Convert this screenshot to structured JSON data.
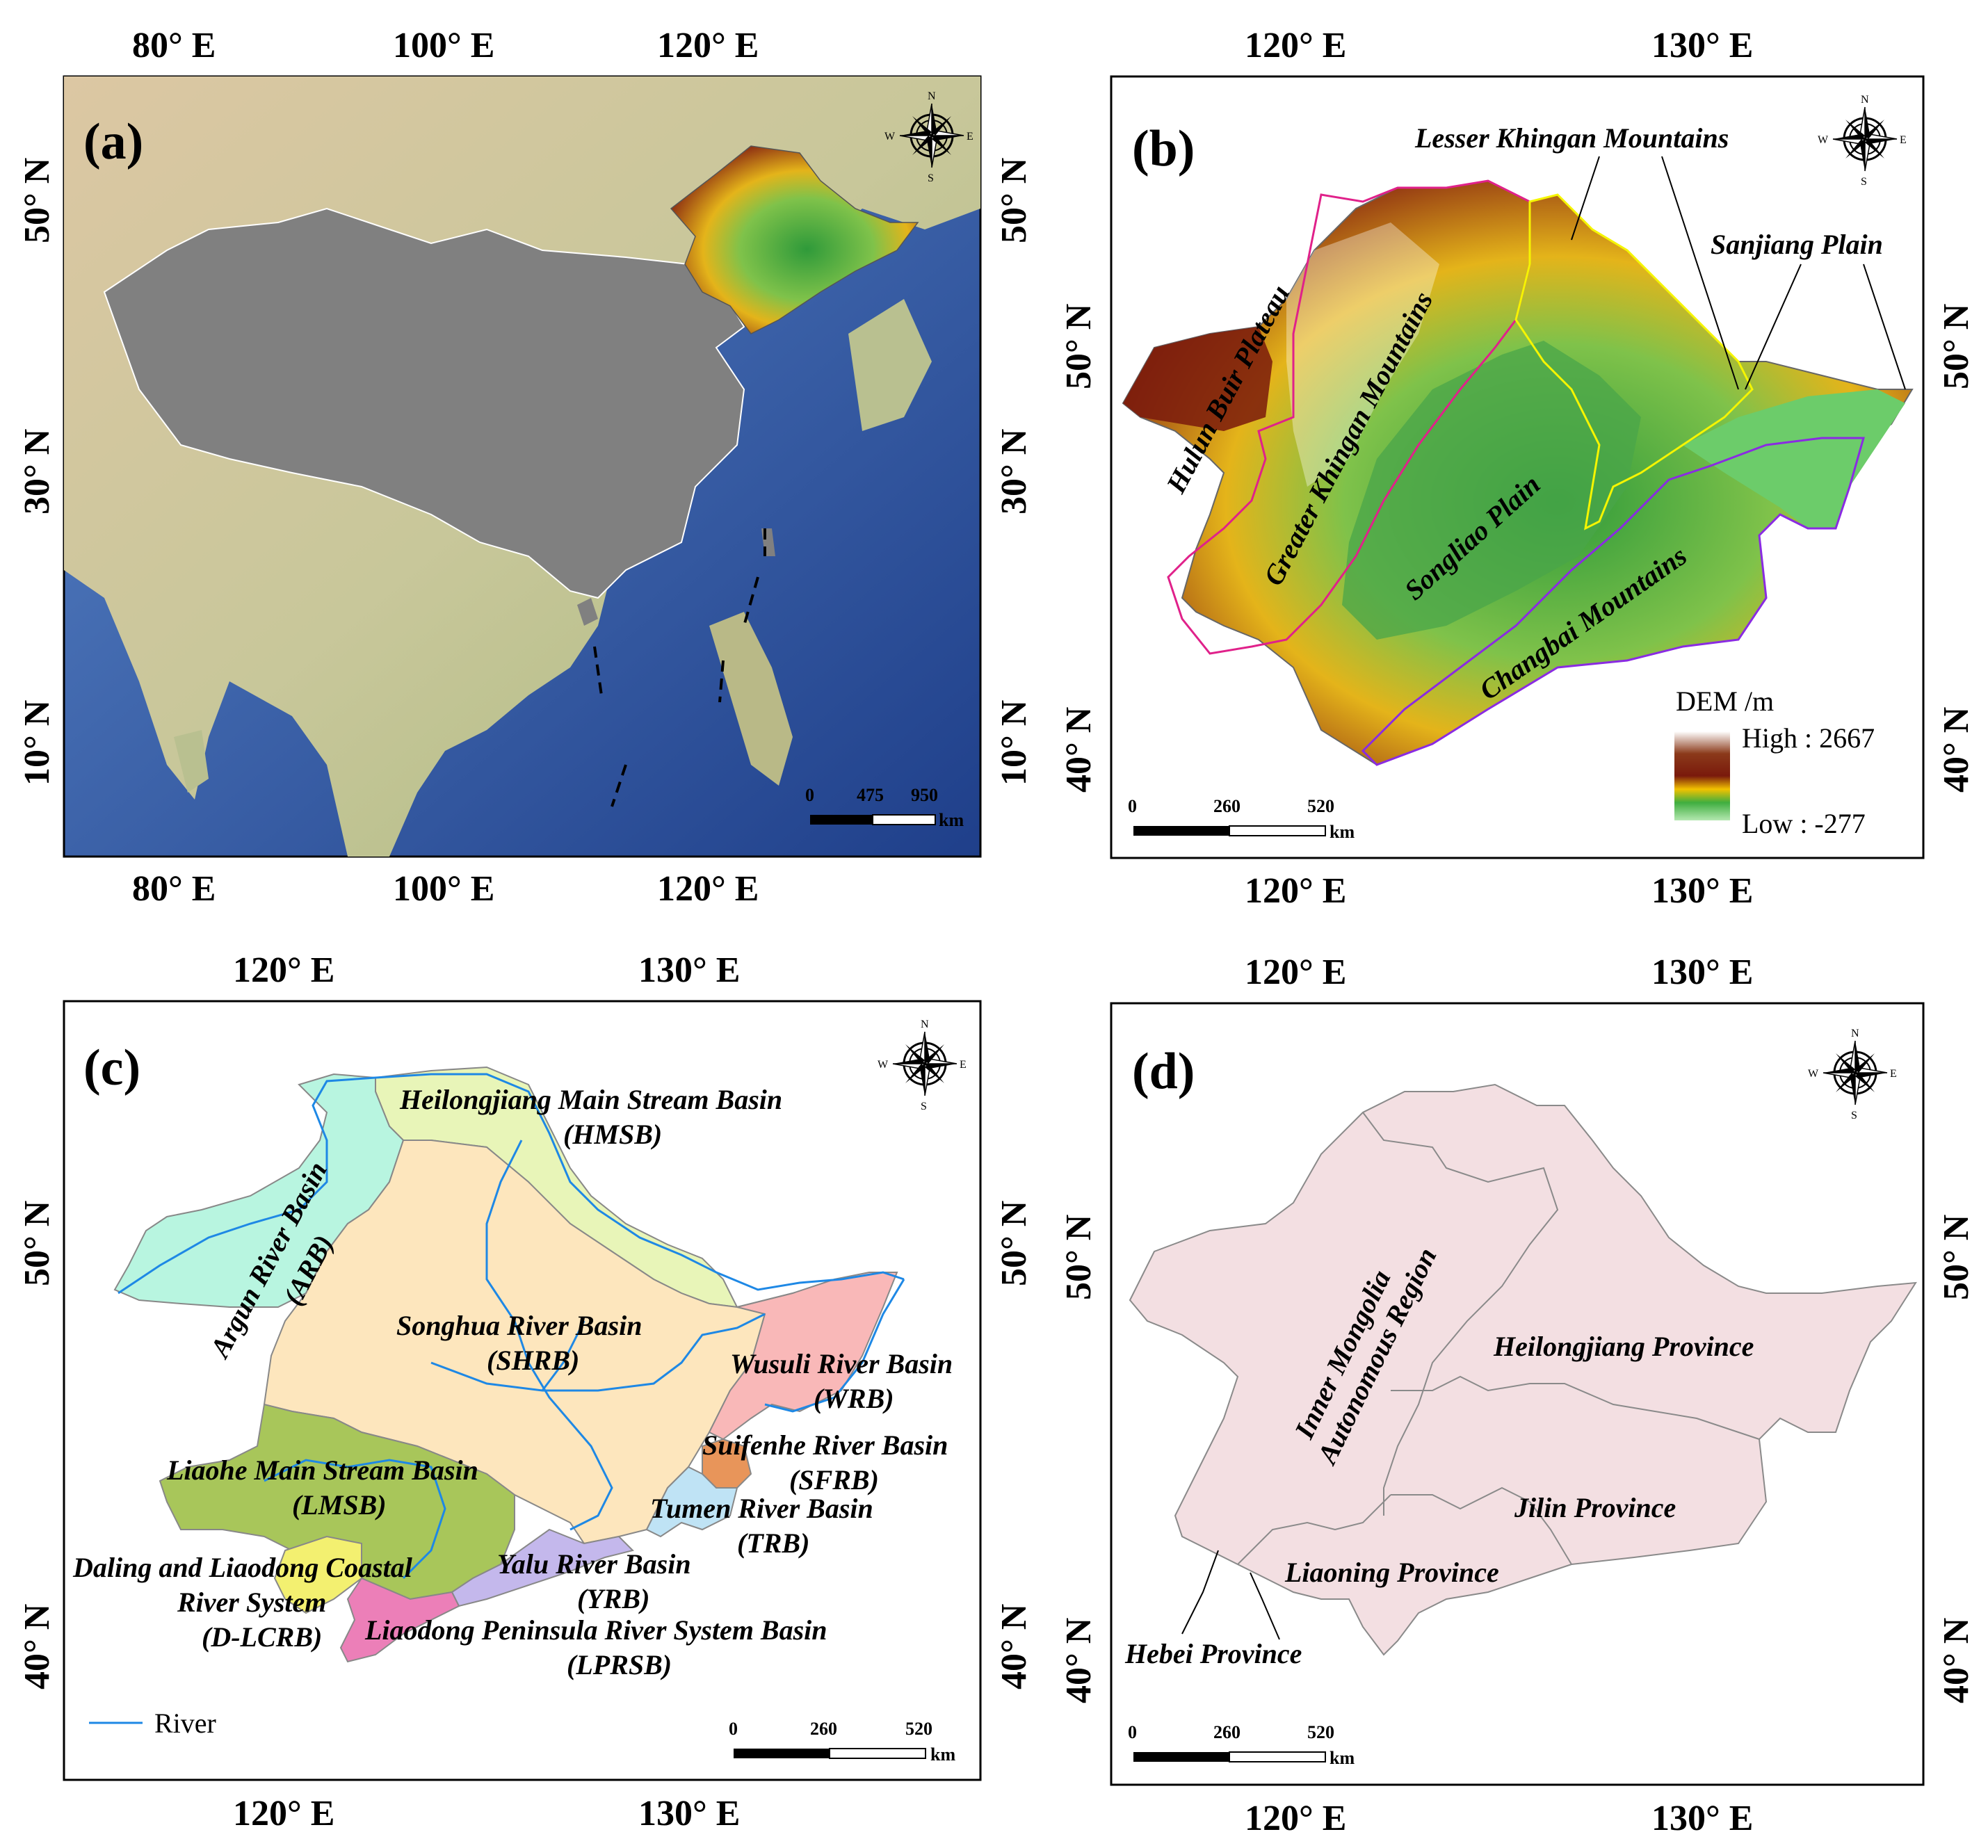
{
  "panels": {
    "a": {
      "label": "(a)",
      "x_ticks": [
        "80° E",
        "100° E",
        "120° E"
      ],
      "y_ticks": [
        "50° N",
        "30° N",
        "10° N"
      ],
      "scale": [
        "0",
        "475",
        "950",
        "km"
      ]
    },
    "b": {
      "label": "(b)",
      "x_ticks": [
        "120° E",
        "130° E"
      ],
      "y_ticks": [
        "50° N",
        "40° N"
      ],
      "scale": [
        "0",
        "260",
        "520",
        "km"
      ],
      "regions": {
        "lesser_khingan": "Lesser Khingan Mountains",
        "sanjiang": "Sanjiang Plain",
        "hulun": "Hulun Buir Plateau",
        "greater_khingan": "Greater Khingan Mountains",
        "songliao": "Songliao Plain",
        "changbai": "Changbai Mountains"
      },
      "dem_legend": {
        "title": "DEM /m",
        "high": "High : 2667",
        "low": "Low : -277"
      },
      "colors": {
        "plain": "#3fae3f",
        "low": "#b4e8b0",
        "mid": "#f2c200",
        "high": "#7a1a0c",
        "peak": "#ffffff"
      }
    },
    "c": {
      "label": "(c)",
      "x_ticks": [
        "120° E",
        "130° E"
      ],
      "y_ticks": [
        "50° N",
        "40° N"
      ],
      "scale": [
        "0",
        "260",
        "520",
        "km"
      ],
      "basins": {
        "hmsb": [
          "Heilongjiang Main Stream Basin",
          "(HMSB)"
        ],
        "arb": [
          "Argun River Basin",
          "(ARB)"
        ],
        "shrb": [
          "Songhua River Basin",
          "(SHRB)"
        ],
        "wrb": [
          "Wusuli River Basin",
          "(WRB)"
        ],
        "sfrb": [
          "Suifenhe River Basin",
          "(SFRB)"
        ],
        "lmsb": [
          "Liaohe Main Stream Basin",
          "(LMSB)"
        ],
        "trb": [
          "Tumen River Basin",
          "(TRB)"
        ],
        "yrb": [
          "Yalu River Basin",
          "(YRB)"
        ],
        "dlcrb": [
          "Daling and Liaodong Coastal",
          "River System",
          "(D-LCRB)"
        ],
        "lprsb": [
          "Liaodong Peninsula River System Basin",
          "(LPRSB)"
        ]
      },
      "legend": {
        "river": "River"
      },
      "colors": {
        "hmsb": "#e8f5b8",
        "arb": "#b8f5e0",
        "shrb": "#fde6bd",
        "wrb": "#f9b8b8",
        "sfrb": "#e8955a",
        "lmsb": "#a8c65a",
        "trb": "#bfe3f5",
        "yrb": "#c4b8ec",
        "dlcrb": "#f3f070",
        "lprsb": "#ec7fb8",
        "river": "#1e88e5"
      }
    },
    "d": {
      "label": "(d)",
      "x_ticks": [
        "120° E",
        "130° E"
      ],
      "y_ticks": [
        "50° N",
        "40° N"
      ],
      "scale": [
        "0",
        "260",
        "520",
        "km"
      ],
      "provinces": {
        "inner_mongolia": [
          "Inner Mongolia",
          "Autonomous Region"
        ],
        "heilongjiang": "Heilongjiang Province",
        "jilin": "Jilin Province",
        "liaoning": "Liaoning Province",
        "hebei": "Hebei Province"
      },
      "colors": {
        "fill": "#f3dfe2",
        "border": "#8a8a8a"
      }
    }
  },
  "compass": {
    "n": "N",
    "s": "S",
    "e": "E",
    "w": "W"
  }
}
